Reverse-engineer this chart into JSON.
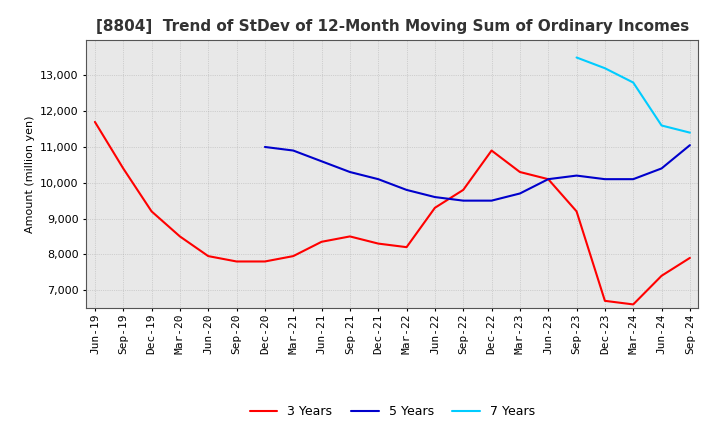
{
  "title": "[8804]  Trend of StDev of 12-Month Moving Sum of Ordinary Incomes",
  "ylabel": "Amount (million yen)",
  "ylim": [
    6500,
    14000
  ],
  "yticks": [
    7000,
    8000,
    9000,
    10000,
    11000,
    12000,
    13000
  ],
  "background_color": "#ffffff",
  "grid_color": "#aaaaaa",
  "series": {
    "3 Years": {
      "color": "#ff0000",
      "values": [
        11700,
        10400,
        9200,
        8500,
        7950,
        7800,
        7800,
        7950,
        8350,
        8500,
        8300,
        8200,
        9300,
        9800,
        10900,
        10300,
        10100,
        9200,
        6700,
        6600,
        7400,
        7900
      ]
    },
    "5 Years": {
      "color": "#0000cc",
      "values": [
        null,
        null,
        null,
        null,
        null,
        null,
        11000,
        10900,
        10600,
        10300,
        10100,
        9800,
        9600,
        9500,
        9500,
        9700,
        10100,
        10200,
        10100,
        10100,
        10400,
        11050
      ]
    },
    "7 Years": {
      "color": "#00ccff",
      "values": [
        null,
        null,
        null,
        null,
        null,
        null,
        null,
        null,
        null,
        null,
        null,
        null,
        null,
        null,
        null,
        null,
        null,
        13500,
        13200,
        12800,
        11600,
        11400
      ]
    },
    "10 Years": {
      "color": "#008000",
      "values": [
        null,
        null,
        null,
        null,
        null,
        null,
        null,
        null,
        null,
        null,
        null,
        null,
        null,
        null,
        null,
        null,
        null,
        null,
        null,
        null,
        null,
        null
      ]
    }
  },
  "dates": [
    "Jun-19",
    "Sep-19",
    "Dec-19",
    "Mar-20",
    "Jun-20",
    "Sep-20",
    "Dec-20",
    "Mar-21",
    "Jun-21",
    "Sep-21",
    "Dec-21",
    "Mar-22",
    "Jun-22",
    "Sep-22",
    "Dec-22",
    "Mar-23",
    "Jun-23",
    "Sep-23",
    "Dec-23",
    "Mar-24",
    "Jun-24",
    "Sep-24"
  ],
  "title_fontsize": 11,
  "tick_fontsize": 8,
  "legend_fontsize": 9
}
